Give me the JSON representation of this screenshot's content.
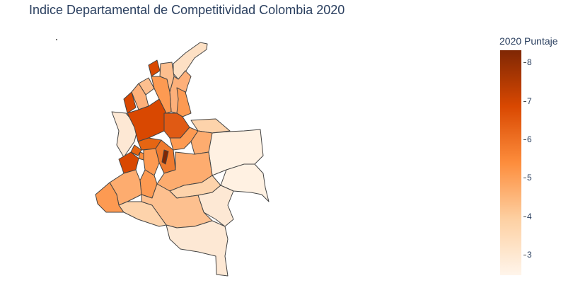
{
  "title": "Indice Departamental de Competitividad Colombia 2020",
  "colorbar": {
    "title": "2020 Puntaje",
    "ticks": [
      "3",
      "4",
      "5",
      "6",
      "7",
      "8"
    ],
    "range": [
      2.45,
      8.3
    ],
    "colorscale": [
      "#fff5eb",
      "#fdd0a2",
      "#fd8d3c",
      "#d94801",
      "#7f2704"
    ]
  },
  "map": {
    "type": "choropleth",
    "subject": "Colombia departments",
    "border_color": "#444444"
  }
}
